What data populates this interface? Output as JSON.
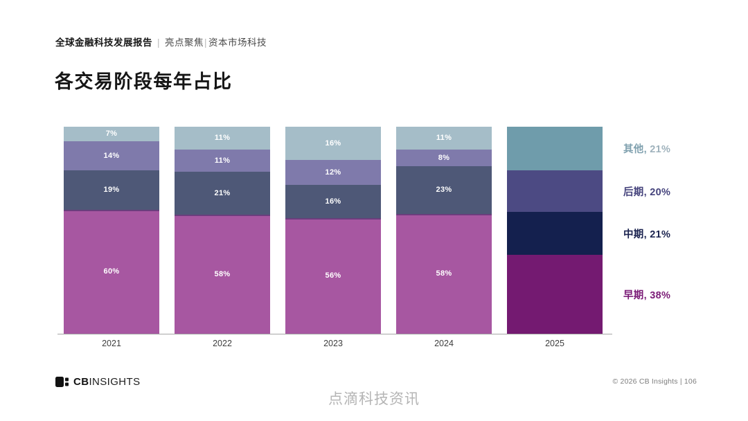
{
  "header": {
    "report_title": "全球金融科技发展报告",
    "separator": "|",
    "section": "亮点聚焦",
    "subsection": "资本市场科技"
  },
  "title": "各交易阶段每年占比",
  "chart_data": {
    "type": "bar",
    "stacked": true,
    "value_unit": "%",
    "categories": [
      "2021",
      "2022",
      "2023",
      "2024",
      "2025"
    ],
    "highlighted_category": "2025",
    "series": [
      {
        "name": "早期",
        "values": [
          60,
          58,
          56,
          58,
          38
        ],
        "color_faded": "#a757a1",
        "color_highlight": "#741a71"
      },
      {
        "name": "中期",
        "values": [
          19,
          21,
          16,
          23,
          21
        ],
        "color_faded": "#4e5877",
        "color_highlight": "#14204e"
      },
      {
        "name": "后期",
        "values": [
          14,
          11,
          12,
          8,
          20
        ],
        "color_faded": "#7f7aab",
        "color_highlight": "#4c4a83"
      },
      {
        "name": "其他",
        "values": [
          7,
          11,
          16,
          11,
          21
        ],
        "color_faded": "#a5bdc8",
        "color_highlight": "#6f9cab"
      }
    ],
    "legend": [
      {
        "label": "其他",
        "value": "21%",
        "color": "#7fa0ae",
        "value_color": "#9fb2bc"
      },
      {
        "label": "后期",
        "value": "20%",
        "color": "#45437c",
        "value_color": "#45437c"
      },
      {
        "label": "中期",
        "value": "21%",
        "color": "#1b234f",
        "value_color": "#1b234f"
      },
      {
        "label": "早期",
        "value": "38%",
        "color": "#7b1c77",
        "value_color": "#7b1c77"
      }
    ],
    "inline_label_color": "#ffffff",
    "legend_position": "right",
    "grid": false
  },
  "footer": {
    "logo_cb": "CB",
    "logo_insights": "INSIGHTS",
    "copyright": "© 2026 CB Insights  |  106"
  },
  "watermark": "点滴科技资讯"
}
